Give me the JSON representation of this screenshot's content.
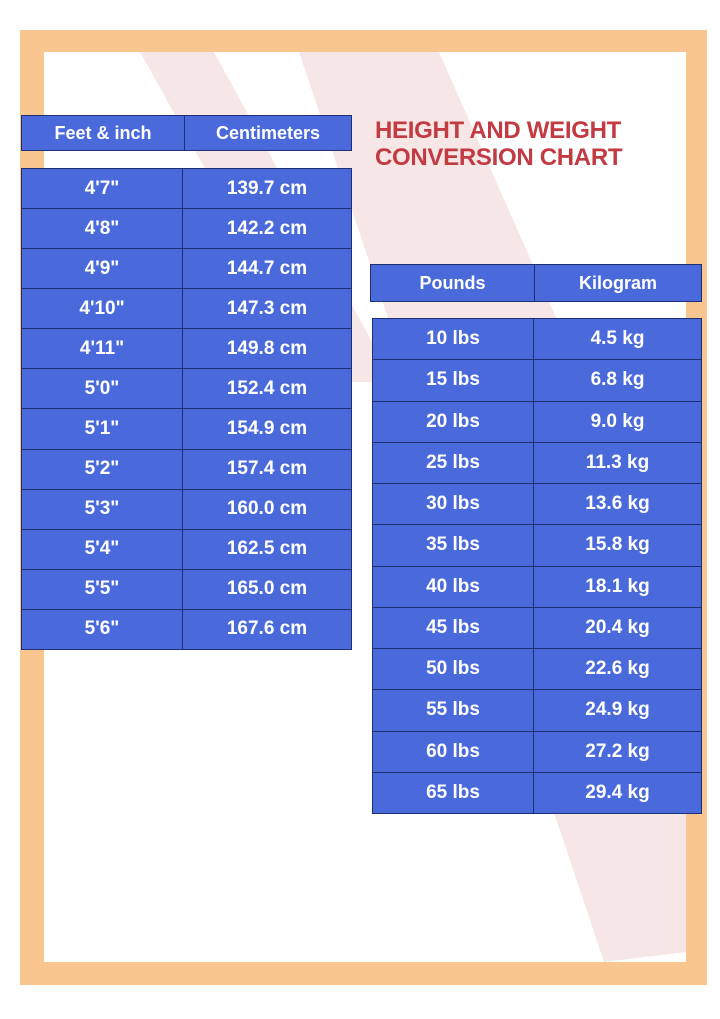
{
  "title_line1": "HEIGHT AND WEIGHT",
  "title_line2": "CONVERSION CHART",
  "colors": {
    "frame": "#F9C690",
    "table": "#4A6ADC",
    "title": "#C23A42",
    "stripe": "#F7E6E6"
  },
  "height_table": {
    "headers": [
      "Feet & inch",
      "Centimeters"
    ],
    "rows": [
      [
        "4'7\"",
        "139.7 cm"
      ],
      [
        "4'8\"",
        "142.2 cm"
      ],
      [
        "4'9\"",
        "144.7 cm"
      ],
      [
        "4'10\"",
        "147.3 cm"
      ],
      [
        "4'11\"",
        "149.8 cm"
      ],
      [
        "5'0\"",
        "152.4 cm"
      ],
      [
        "5'1\"",
        "154.9 cm"
      ],
      [
        "5'2\"",
        "157.4 cm"
      ],
      [
        "5'3\"",
        "160.0 cm"
      ],
      [
        "5'4\"",
        "162.5 cm"
      ],
      [
        "5'5\"",
        "165.0 cm"
      ],
      [
        "5'6\"",
        "167.6 cm"
      ]
    ]
  },
  "weight_table": {
    "headers": [
      "Pounds",
      "Kilogram"
    ],
    "rows": [
      [
        "10 lbs",
        "4.5 kg"
      ],
      [
        "15 lbs",
        "6.8 kg"
      ],
      [
        "20 lbs",
        "9.0 kg"
      ],
      [
        "25 lbs",
        "11.3 kg"
      ],
      [
        "30 lbs",
        "13.6 kg"
      ],
      [
        "35 lbs",
        "15.8 kg"
      ],
      [
        "40 lbs",
        "18.1 kg"
      ],
      [
        "45 lbs",
        "20.4 kg"
      ],
      [
        "50 lbs",
        "22.6 kg"
      ],
      [
        "55 lbs",
        "24.9 kg"
      ],
      [
        "60 lbs",
        "27.2 kg"
      ],
      [
        "65 lbs",
        "29.4 kg"
      ]
    ]
  }
}
